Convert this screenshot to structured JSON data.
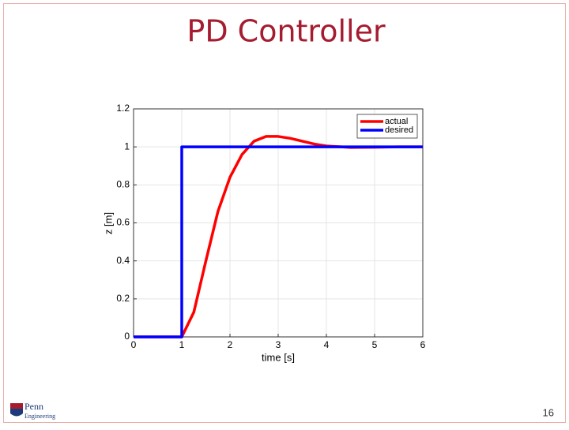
{
  "slide": {
    "title": "PD Controller",
    "page_number": "16"
  },
  "logo": {
    "name": "Penn",
    "subtitle": "Engineering"
  },
  "chart_data": {
    "type": "line",
    "x_label": "time [s]",
    "y_label": "z [m]",
    "x": [
      0,
      1,
      1,
      1.25,
      1.5,
      1.75,
      2,
      2.25,
      2.5,
      2.75,
      3,
      3.25,
      3.5,
      3.75,
      4,
      4.5,
      5,
      5.5,
      6
    ],
    "series": [
      {
        "name": "actual",
        "color": "#ff0000",
        "values": [
          0,
          0,
          0,
          0.13,
          0.4,
          0.66,
          0.84,
          0.96,
          1.03,
          1.055,
          1.055,
          1.045,
          1.03,
          1.015,
          1.005,
          0.997,
          0.998,
          1.0,
          1.0
        ]
      },
      {
        "name": "desired",
        "color": "#0000ff",
        "values": [
          0,
          0,
          1,
          1,
          1,
          1,
          1,
          1,
          1,
          1,
          1,
          1,
          1,
          1,
          1,
          1,
          1,
          1,
          1
        ]
      }
    ],
    "xlim": [
      0,
      6
    ],
    "ylim": [
      0,
      1.2
    ],
    "xticks": [
      0,
      1,
      2,
      3,
      4,
      5,
      6
    ],
    "yticks": [
      0,
      0.2,
      0.4,
      0.6,
      0.8,
      1,
      1.2
    ],
    "grid": true,
    "legend": "upper-right"
  }
}
